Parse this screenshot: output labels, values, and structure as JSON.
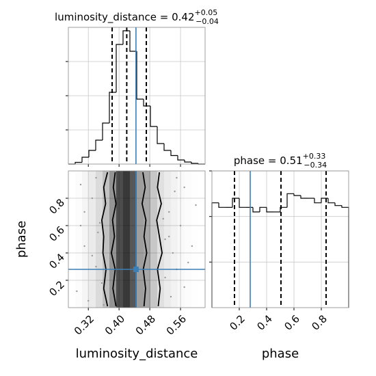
{
  "chart_data": [
    {
      "type": "histogram",
      "title": {
        "main": "luminosity_distance = 0.42",
        "sup": "+0.05",
        "sub": "−0.04"
      },
      "bins": [
        0.268,
        0.2858,
        0.3036,
        0.3214,
        0.3392,
        0.357,
        0.3748,
        0.3926,
        0.4104,
        0.4282,
        0.446,
        0.4638,
        0.4816,
        0.4994,
        0.5172,
        0.535,
        0.5528,
        0.5706,
        0.5884,
        0.6062,
        0.624
      ],
      "counts": [
        0,
        0.05,
        0.2,
        0.4,
        0.7,
        1.2,
        2.1,
        3.5,
        3.9,
        3.3,
        1.9,
        1.7,
        1.1,
        0.6,
        0.4,
        0.25,
        0.12,
        0.06,
        0.02,
        0
      ],
      "xlim": [
        0.268,
        0.624
      ],
      "xticks": [
        0.32,
        0.4,
        0.48,
        0.56
      ],
      "ylim": [
        0,
        4
      ],
      "yticks": [
        1,
        2,
        3
      ],
      "quantiles": [
        0.382,
        0.42,
        0.471
      ],
      "truth": 0.444,
      "color": "#000000",
      "grid": true
    },
    {
      "type": "density2d",
      "xlabel": "luminosity_distance",
      "ylabel": "phase",
      "xlim": [
        0.268,
        0.624
      ],
      "xticks": [
        0.32,
        {
          "value": 0.4,
          "label": "0.40"
        },
        0.48,
        0.56
      ],
      "ylim": [
        0,
        1
      ],
      "yticks": [
        0.2,
        0.4,
        0.6,
        0.8
      ],
      "contours": [
        {
          "x": [
            0.37,
            0.36,
            0.365,
            0.355,
            0.36,
            0.358,
            0.366,
            0.36,
            0.37
          ],
          "y": [
            0.99,
            0.88,
            0.76,
            0.64,
            0.52,
            0.4,
            0.28,
            0.14,
            0.01
          ]
        },
        {
          "x": [
            0.39,
            0.385,
            0.392,
            0.383,
            0.388,
            0.38,
            0.39,
            0.384,
            0.392
          ],
          "y": [
            0.99,
            0.88,
            0.76,
            0.64,
            0.52,
            0.4,
            0.28,
            0.14,
            0.01
          ]
        },
        {
          "x": [
            0.462,
            0.468,
            0.46,
            0.47,
            0.465,
            0.472,
            0.463,
            0.469,
            0.465
          ],
          "y": [
            0.99,
            0.88,
            0.76,
            0.64,
            0.52,
            0.4,
            0.28,
            0.14,
            0.01
          ]
        },
        {
          "x": [
            0.505,
            0.5,
            0.51,
            0.498,
            0.505,
            0.512,
            0.5,
            0.507,
            0.502
          ],
          "y": [
            0.99,
            0.88,
            0.76,
            0.64,
            0.52,
            0.4,
            0.28,
            0.14,
            0.01
          ]
        }
      ],
      "scatter": {
        "x": [
          0.29,
          0.31,
          0.33,
          0.34,
          0.35,
          0.3,
          0.32,
          0.345,
          0.355,
          0.52,
          0.53,
          0.54,
          0.55,
          0.56,
          0.58,
          0.6,
          0.52,
          0.535,
          0.545,
          0.57,
          0.59,
          0.515,
          0.33,
          0.31,
          0.34,
          0.55,
          0.57,
          0.53,
          0.3,
          0.36
        ],
        "y": [
          0.12,
          0.45,
          0.8,
          0.3,
          0.62,
          0.9,
          0.05,
          0.55,
          0.18,
          0.22,
          0.7,
          0.4,
          0.95,
          0.6,
          0.33,
          0.75,
          0.5,
          0.08,
          0.85,
          0.15,
          0.45,
          0.65,
          0.38,
          0.7,
          0.95,
          0.28,
          0.88,
          0.52,
          0.6,
          0.02
        ]
      },
      "truth": [
        0.444,
        0.28
      ],
      "color": "#000000",
      "grid": true
    },
    {
      "type": "histogram",
      "title": {
        "main": "phase = 0.51",
        "sup": "+0.33",
        "sub": "−0.34"
      },
      "xlabel": "phase",
      "bins": [
        0,
        0.05,
        0.1,
        0.15,
        0.2,
        0.25,
        0.3,
        0.35,
        0.4,
        0.45,
        0.5,
        0.55,
        0.6,
        0.65,
        0.7,
        0.75,
        0.8,
        0.85,
        0.9,
        0.95,
        1
      ],
      "counts": [
        1.15,
        1.1,
        1.1,
        1.2,
        1.1,
        1.1,
        1.05,
        1.1,
        1.05,
        1.05,
        1.1,
        1.25,
        1.23,
        1.2,
        1.2,
        1.15,
        1.2,
        1.15,
        1.12,
        1.1
      ],
      "xlim": [
        0,
        1
      ],
      "xticks": [
        0.2,
        0.4,
        0.6,
        0.8
      ],
      "ylim": [
        0,
        1.5
      ],
      "yticks": [
        0.5,
        1,
        1.5
      ],
      "quantiles": [
        0.165,
        0.505,
        0.835
      ],
      "truth": 0.28,
      "color": "#000000",
      "grid": true
    }
  ]
}
